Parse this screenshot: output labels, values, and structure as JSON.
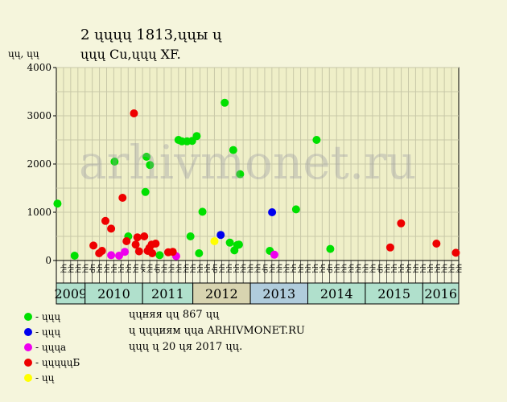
{
  "title_line1": "2 ųųųų 1813,ųųы ų",
  "title_line2": "ųųų Cu,ųųų XF.",
  "watermark": "arhivmonet.ru",
  "legend": [
    {
      "label": "- ųųų",
      "color": "#00e000"
    },
    {
      "label": "- ųųų",
      "color": "#0000ee"
    },
    {
      "label": "- ųųųa",
      "color": "#ee00ee"
    },
    {
      "label": "- ųųųųųБ",
      "color": "#ee0000"
    },
    {
      "label": "- ųų",
      "color": "#ffff00"
    }
  ],
  "info": [
    "ųųняя ųų 867 ųų",
    "ų ųųųиям ųųa ARHIVMONET.RU",
    "ųųų ų 20 ųя 2017 ųų."
  ],
  "chart_data": {
    "type": "scatter",
    "ylabel": "ųų, ųų",
    "ylim": [
      0,
      4000
    ],
    "yticks": [
      0,
      1000,
      2000,
      3000,
      4000
    ],
    "grid": true,
    "x_ticks": [
      "ųų",
      "ųų",
      "ųų",
      "ųų",
      "цр",
      "ųų",
      "ųų",
      "ųų",
      "ųų",
      "ųų",
      "ųų",
      "цк",
      "ųų",
      "цр",
      "ųų",
      "ųų",
      "ųų",
      "ųų",
      "ųų",
      "ųų",
      "ųų",
      "цр",
      "ųų",
      "ųų",
      "ųų",
      "ųų",
      "ųų",
      "ųų",
      "цр",
      "ųų",
      "ųų",
      "ųų",
      "ųų",
      "ųų",
      "ųų",
      "ųų",
      "ųų",
      "цр",
      "ųų",
      "ųų",
      "ųų",
      "ųų",
      "ųų",
      "ųų",
      "цр",
      "ųų",
      "ųų",
      "ųų",
      "ųų",
      "ųų",
      "ųų",
      "ųų",
      "ųų",
      "ųų",
      "ųų",
      "ųų"
    ],
    "years": [
      {
        "label": "2009",
        "start": 0,
        "count": 4,
        "color": "#b0e0cc"
      },
      {
        "label": "2010",
        "start": 4,
        "count": 8,
        "color": "#b0e0cc"
      },
      {
        "label": "2011",
        "start": 12,
        "count": 7,
        "color": "#b0e0cc"
      },
      {
        "label": "2012",
        "start": 19,
        "count": 8,
        "color": "#d8d4b0"
      },
      {
        "label": "2013",
        "start": 27,
        "count": 8,
        "color": "#b0ccdc"
      },
      {
        "label": "2014",
        "start": 35,
        "count": 8,
        "color": "#b0e0cc"
      },
      {
        "label": "2015",
        "start": 43,
        "count": 8,
        "color": "#b0e0cc"
      },
      {
        "label": "2016",
        "start": 51,
        "count": 5,
        "color": "#b0e0cc"
      }
    ],
    "series": [
      {
        "color": "#00e000",
        "points": [
          {
            "x": 0.2,
            "y": 1180
          },
          {
            "x": 3.2,
            "y": 100
          },
          {
            "x": 10.2,
            "y": 2050
          },
          {
            "x": 12.6,
            "y": 500
          },
          {
            "x": 15.6,
            "y": 1420
          },
          {
            "x": 15.8,
            "y": 2150
          },
          {
            "x": 16.4,
            "y": 1980
          },
          {
            "x": 18.1,
            "y": 110
          },
          {
            "x": 21.4,
            "y": 2500
          },
          {
            "x": 22.0,
            "y": 2470
          },
          {
            "x": 22.9,
            "y": 2470
          },
          {
            "x": 23.5,
            "y": 500
          },
          {
            "x": 23.8,
            "y": 2480
          },
          {
            "x": 24.6,
            "y": 2580
          },
          {
            "x": 25.0,
            "y": 150
          },
          {
            "x": 25.6,
            "y": 1010
          },
          {
            "x": 29.5,
            "y": 3270
          },
          {
            "x": 30.4,
            "y": 370
          },
          {
            "x": 31.0,
            "y": 2290
          },
          {
            "x": 31.2,
            "y": 210
          },
          {
            "x": 31.7,
            "y": 320
          },
          {
            "x": 32.2,
            "y": 1790
          },
          {
            "x": 32.0,
            "y": 330
          },
          {
            "x": 37.4,
            "y": 200
          },
          {
            "x": 42.0,
            "y": 1060
          },
          {
            "x": 45.6,
            "y": 2500
          },
          {
            "x": 48.0,
            "y": 240
          }
        ]
      },
      {
        "color": "#0000ee",
        "points": [
          {
            "x": 28.8,
            "y": 530
          },
          {
            "x": 37.8,
            "y": 1000
          }
        ]
      },
      {
        "color": "#ee00ee",
        "points": [
          {
            "x": 9.6,
            "y": 110
          },
          {
            "x": 11.0,
            "y": 100
          },
          {
            "x": 12.0,
            "y": 180
          },
          {
            "x": 21.0,
            "y": 90
          },
          {
            "x": 38.2,
            "y": 120
          }
        ]
      },
      {
        "color": "#ee0000",
        "points": [
          {
            "x": 6.5,
            "y": 310
          },
          {
            "x": 7.5,
            "y": 150
          },
          {
            "x": 8.0,
            "y": 200
          },
          {
            "x": 8.6,
            "y": 820
          },
          {
            "x": 9.6,
            "y": 660
          },
          {
            "x": 11.6,
            "y": 1300
          },
          {
            "x": 12.3,
            "y": 400
          },
          {
            "x": 13.6,
            "y": 3050
          },
          {
            "x": 13.9,
            "y": 330
          },
          {
            "x": 14.2,
            "y": 480
          },
          {
            "x": 14.5,
            "y": 190
          },
          {
            "x": 15.4,
            "y": 500
          },
          {
            "x": 16.0,
            "y": 200
          },
          {
            "x": 16.3,
            "y": 260
          },
          {
            "x": 16.7,
            "y": 330
          },
          {
            "x": 16.8,
            "y": 150
          },
          {
            "x": 17.4,
            "y": 350
          },
          {
            "x": 19.6,
            "y": 170
          },
          {
            "x": 20.4,
            "y": 180
          },
          {
            "x": 58.5,
            "y": 270
          },
          {
            "x": 60.4,
            "y": 770
          },
          {
            "x": 66.6,
            "y": 350
          },
          {
            "x": 70.0,
            "y": 160
          }
        ]
      },
      {
        "color": "#ffff00",
        "points": [
          {
            "x": 27.7,
            "y": 400
          }
        ]
      }
    ]
  }
}
